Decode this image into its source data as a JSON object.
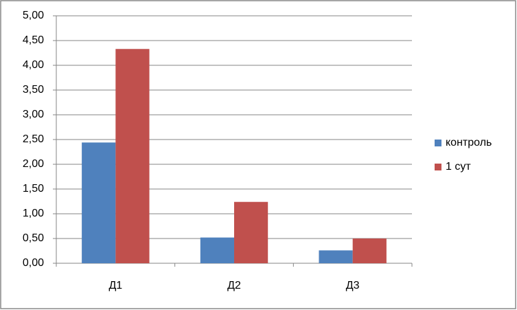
{
  "chart_data": {
    "type": "bar",
    "categories": [
      "Д1",
      "Д2",
      "Д3"
    ],
    "series": [
      {
        "name": "контроль",
        "color": "#4f81bd",
        "values": [
          2.44,
          0.52,
          0.26
        ]
      },
      {
        "name": "1 сут",
        "color": "#c0504d",
        "values": [
          4.33,
          1.24,
          0.5
        ]
      }
    ],
    "ylim": [
      0,
      5
    ],
    "yticks": [
      {
        "value": 0,
        "label": "0,00"
      },
      {
        "value": 0.5,
        "label": "0,50"
      },
      {
        "value": 1,
        "label": "1,00"
      },
      {
        "value": 1.5,
        "label": "1,50"
      },
      {
        "value": 2,
        "label": "2,00"
      },
      {
        "value": 2.5,
        "label": "2,50"
      },
      {
        "value": 3,
        "label": "3,00"
      },
      {
        "value": 3.5,
        "label": "3,50"
      },
      {
        "value": 4,
        "label": "4,00"
      },
      {
        "value": 4.5,
        "label": "4,50"
      },
      {
        "value": 5,
        "label": "5,00"
      }
    ],
    "grid": true,
    "legend": "right"
  }
}
